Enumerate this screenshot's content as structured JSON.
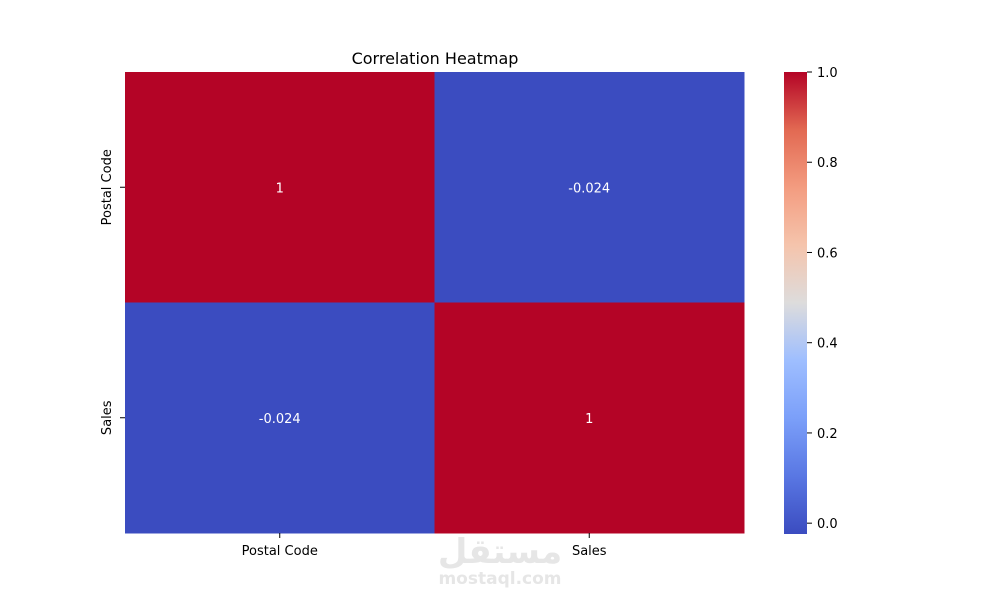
{
  "chart_data": {
    "type": "heatmap",
    "title": "Correlation Heatmap",
    "x_categories": [
      "Postal Code",
      "Sales"
    ],
    "y_categories": [
      "Postal Code",
      "Sales"
    ],
    "values": [
      [
        1,
        -0.024
      ],
      [
        -0.024,
        1
      ]
    ],
    "annotations": [
      [
        "1",
        "-0.024"
      ],
      [
        "-0.024",
        "1"
      ]
    ],
    "colormap": "coolwarm",
    "vmin": -0.024,
    "vmax": 1.0,
    "colorbar": {
      "ticks": [
        0.0,
        0.2,
        0.4,
        0.6,
        0.8,
        1.0
      ],
      "tick_labels": [
        "0.0",
        "0.2",
        "0.4",
        "0.6",
        "0.8",
        "1.0"
      ]
    }
  },
  "watermark": {
    "arabic": "مستقل",
    "latin": "mostaql.com"
  }
}
